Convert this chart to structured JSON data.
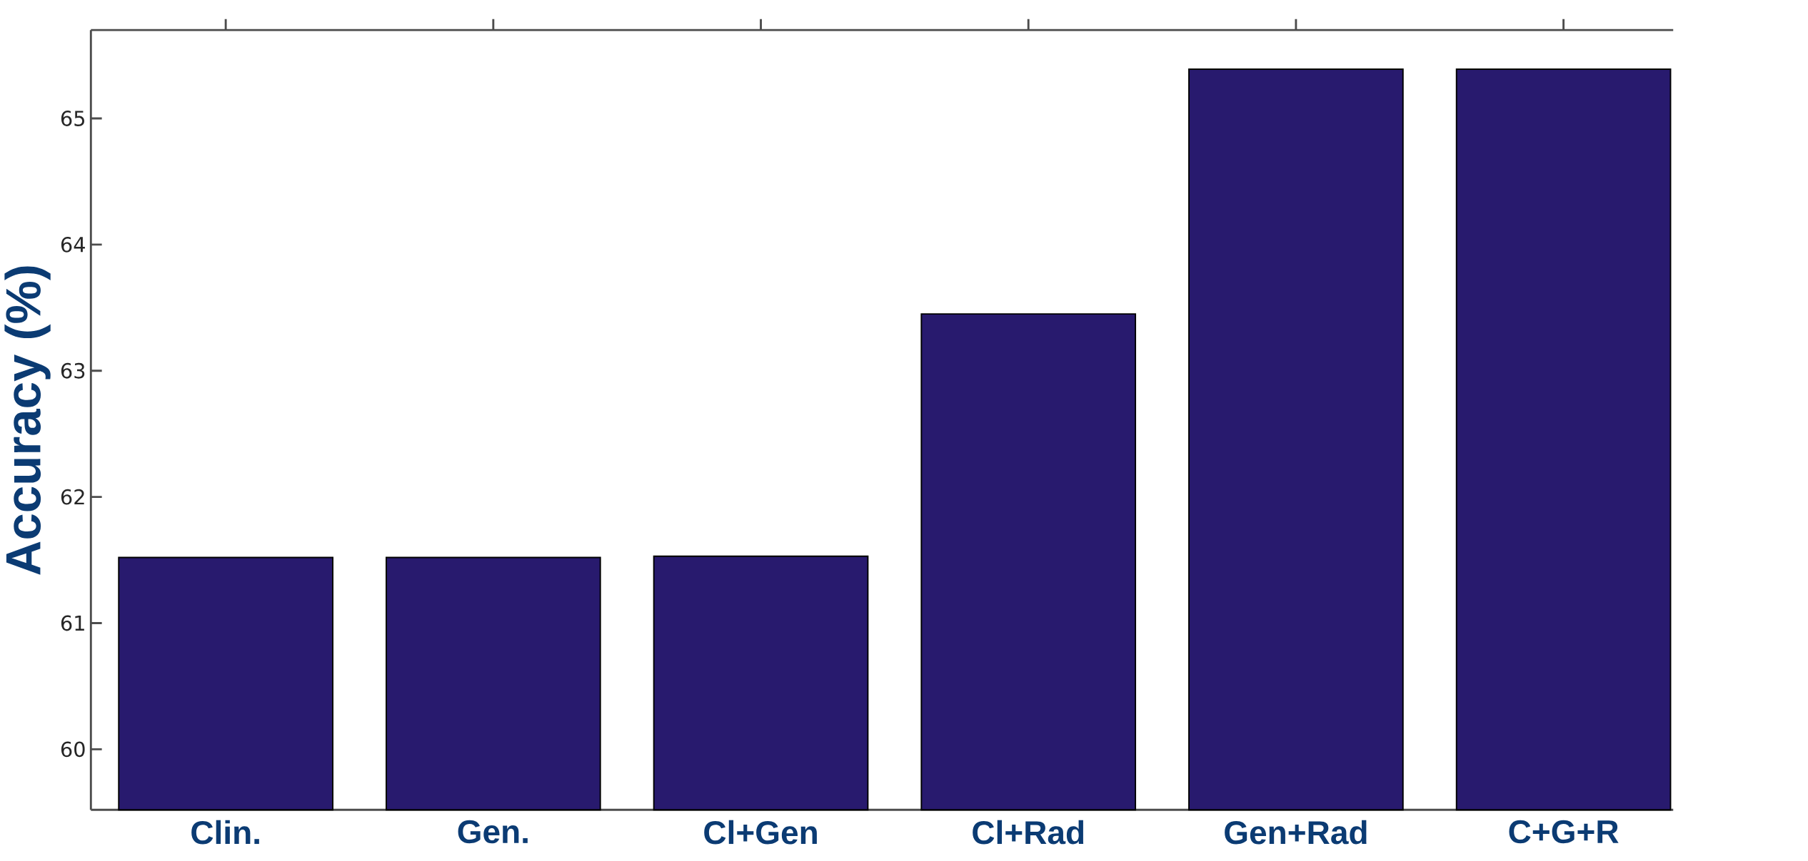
{
  "chart_data": {
    "type": "bar",
    "ylabel": "Accuracy (%)",
    "categories": [
      "Clin.",
      "Gen.",
      "Cl+Gen",
      "Cl+Rad",
      "Gen+Rad",
      "C+G+R"
    ],
    "values": [
      61.52,
      61.52,
      61.53,
      63.45,
      65.39,
      65.39
    ],
    "color": "#281a6e",
    "ylim": [
      59.52,
      65.7
    ],
    "yticks": [
      60,
      61,
      62,
      63,
      64,
      65
    ]
  }
}
